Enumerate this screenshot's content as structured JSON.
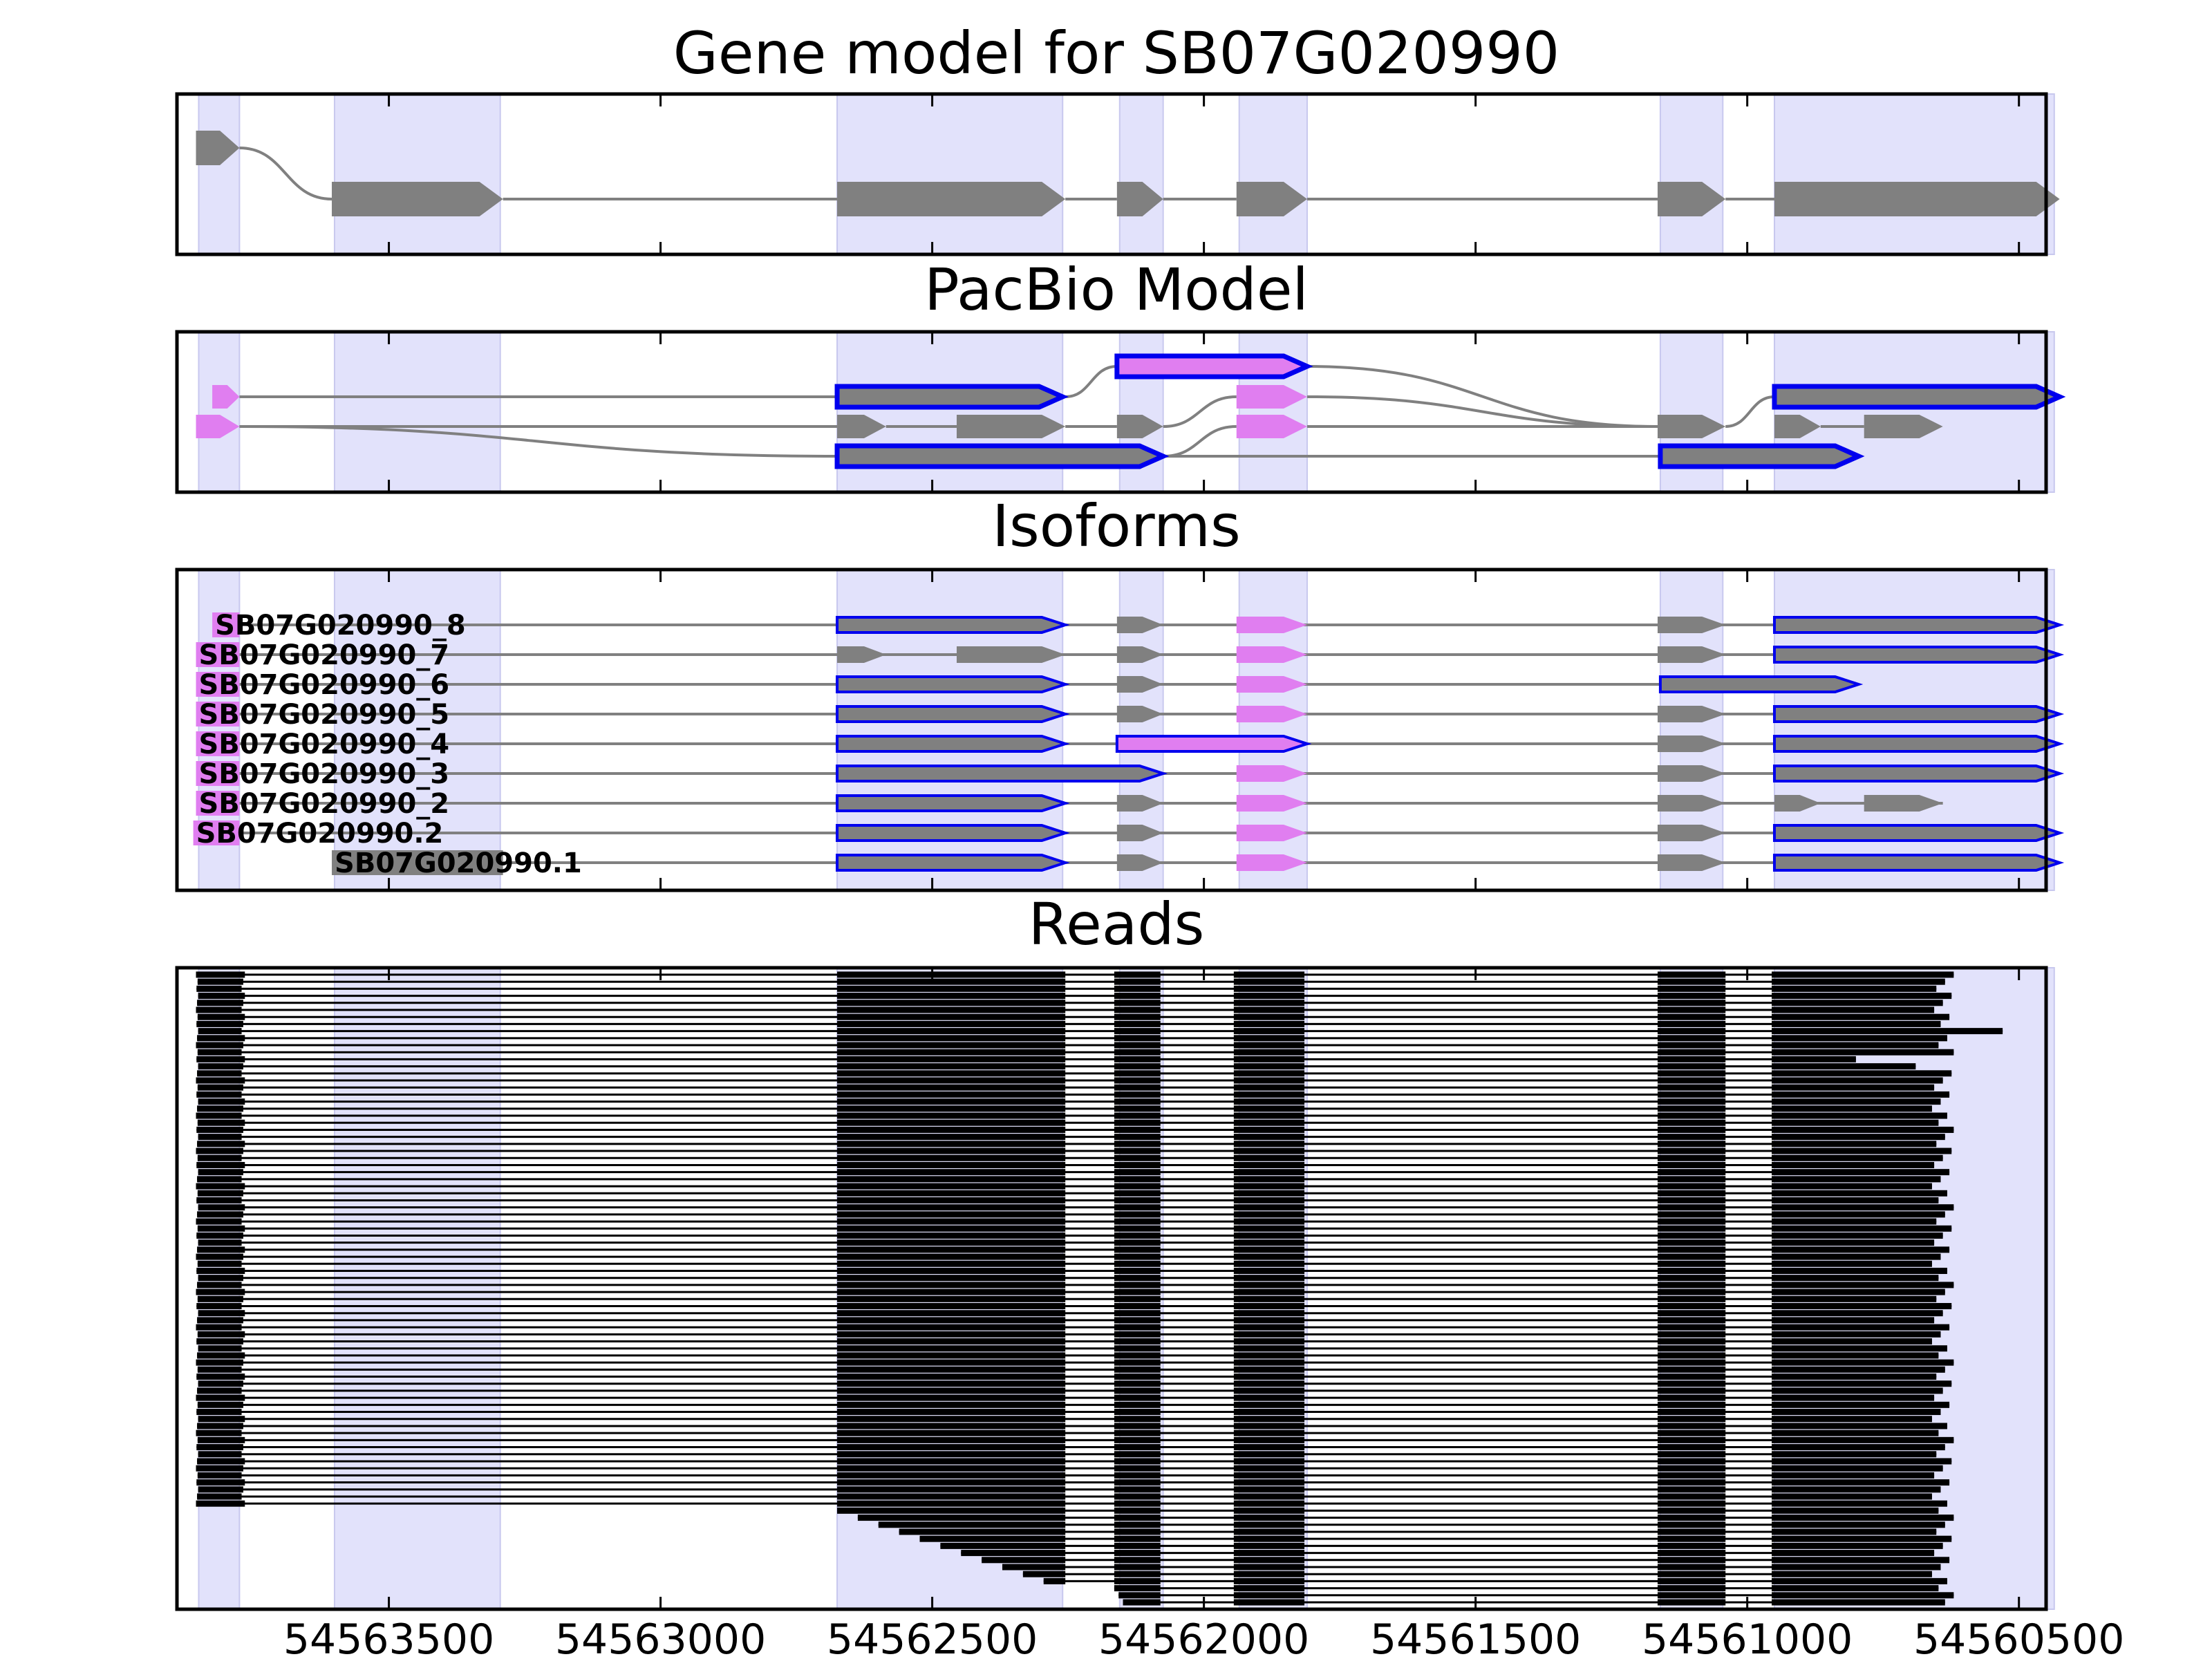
{
  "figure": {
    "panels": [
      {
        "key": "gene_model",
        "title": "Gene model for SB07G020990"
      },
      {
        "key": "pacbio",
        "title": "PacBio Model"
      },
      {
        "key": "isoforms",
        "title": "Isoforms"
      },
      {
        "key": "reads",
        "title": "Reads"
      }
    ]
  },
  "chart_data": {
    "type": "gene-structure",
    "x_axis": {
      "reversed": true,
      "ticks": [
        "54563500",
        "54563000",
        "54562500",
        "54562000",
        "54561500",
        "54561000",
        "54560500"
      ],
      "tick_values": [
        54563500,
        54563000,
        54562500,
        54562000,
        54561500,
        54561000,
        54560500
      ],
      "xlim": [
        54563890,
        54560450
      ]
    },
    "colors": {
      "exon": "#808080",
      "pacbio_exon": "#e07ef0",
      "highlight_outline": "#0000ee",
      "shaded_region": "#e2e2fb",
      "intron": "#808080",
      "read": "#000000"
    },
    "shaded_regions": [
      [
        54563850,
        54563775
      ],
      [
        54563600,
        54563295
      ],
      [
        54562675,
        54562260
      ],
      [
        54562155,
        54562075
      ],
      [
        54561935,
        54561810
      ],
      [
        54561160,
        54561045
      ],
      [
        54560950,
        54560435
      ]
    ],
    "gene_model": {
      "exons": [
        {
          "start": 54563855,
          "end": 54563775,
          "row": 0
        },
        {
          "start": 54563605,
          "end": 54563290,
          "row": 1
        },
        {
          "start": 54562675,
          "end": 54562255,
          "row": 1
        },
        {
          "start": 54562160,
          "end": 54562075,
          "row": 1
        },
        {
          "start": 54561940,
          "end": 54561810,
          "row": 1
        },
        {
          "start": 54561165,
          "end": 54561040,
          "row": 1
        },
        {
          "start": 54560950,
          "end": 54560425,
          "row": 1
        }
      ]
    },
    "pacbio_model": {
      "exons": [
        {
          "start": 54563825,
          "end": 54563775,
          "row": 1,
          "style": "pink"
        },
        {
          "start": 54563855,
          "end": 54563775,
          "row": 2,
          "style": "pink"
        },
        {
          "start": 54562675,
          "end": 54562260,
          "row": 1,
          "style": "outline"
        },
        {
          "start": 54562675,
          "end": 54562585,
          "row": 2,
          "style": "gray"
        },
        {
          "start": 54562455,
          "end": 54562255,
          "row": 2,
          "style": "gray"
        },
        {
          "start": 54562675,
          "end": 54562075,
          "row": 3,
          "style": "outline"
        },
        {
          "start": 54562160,
          "end": 54561810,
          "row": 0,
          "style": "outline-pink"
        },
        {
          "start": 54562160,
          "end": 54562075,
          "row": 2,
          "style": "gray"
        },
        {
          "start": 54561940,
          "end": 54561810,
          "row": 1,
          "style": "pink"
        },
        {
          "start": 54561940,
          "end": 54561810,
          "row": 2,
          "style": "pink"
        },
        {
          "start": 54561165,
          "end": 54561040,
          "row": 2,
          "style": "gray"
        },
        {
          "start": 54561160,
          "end": 54560795,
          "row": 3,
          "style": "outline"
        },
        {
          "start": 54560950,
          "end": 54560425,
          "row": 1,
          "style": "outline"
        },
        {
          "start": 54560950,
          "end": 54560865,
          "row": 2,
          "style": "gray"
        },
        {
          "start": 54560785,
          "end": 54560640,
          "row": 2,
          "style": "gray"
        }
      ]
    },
    "isoforms": [
      {
        "name": "SB07G020990_8"
      },
      {
        "name": "SB07G020990_7"
      },
      {
        "name": "SB07G020990_6"
      },
      {
        "name": "SB07G020990_5"
      },
      {
        "name": "SB07G020990_4"
      },
      {
        "name": "SB07G020990_3"
      },
      {
        "name": "SB07G020990_2"
      },
      {
        "name": "SB07G020990.2"
      },
      {
        "name": "SB07G020990.1"
      }
    ],
    "reads": {
      "count": 90,
      "block_starts": [
        54563855,
        54562675,
        54562165,
        54561945,
        54561165,
        54560955
      ],
      "block_ends": [
        54563765,
        54562255,
        54562080,
        54561815,
        54561040,
        54560640
      ]
    }
  }
}
